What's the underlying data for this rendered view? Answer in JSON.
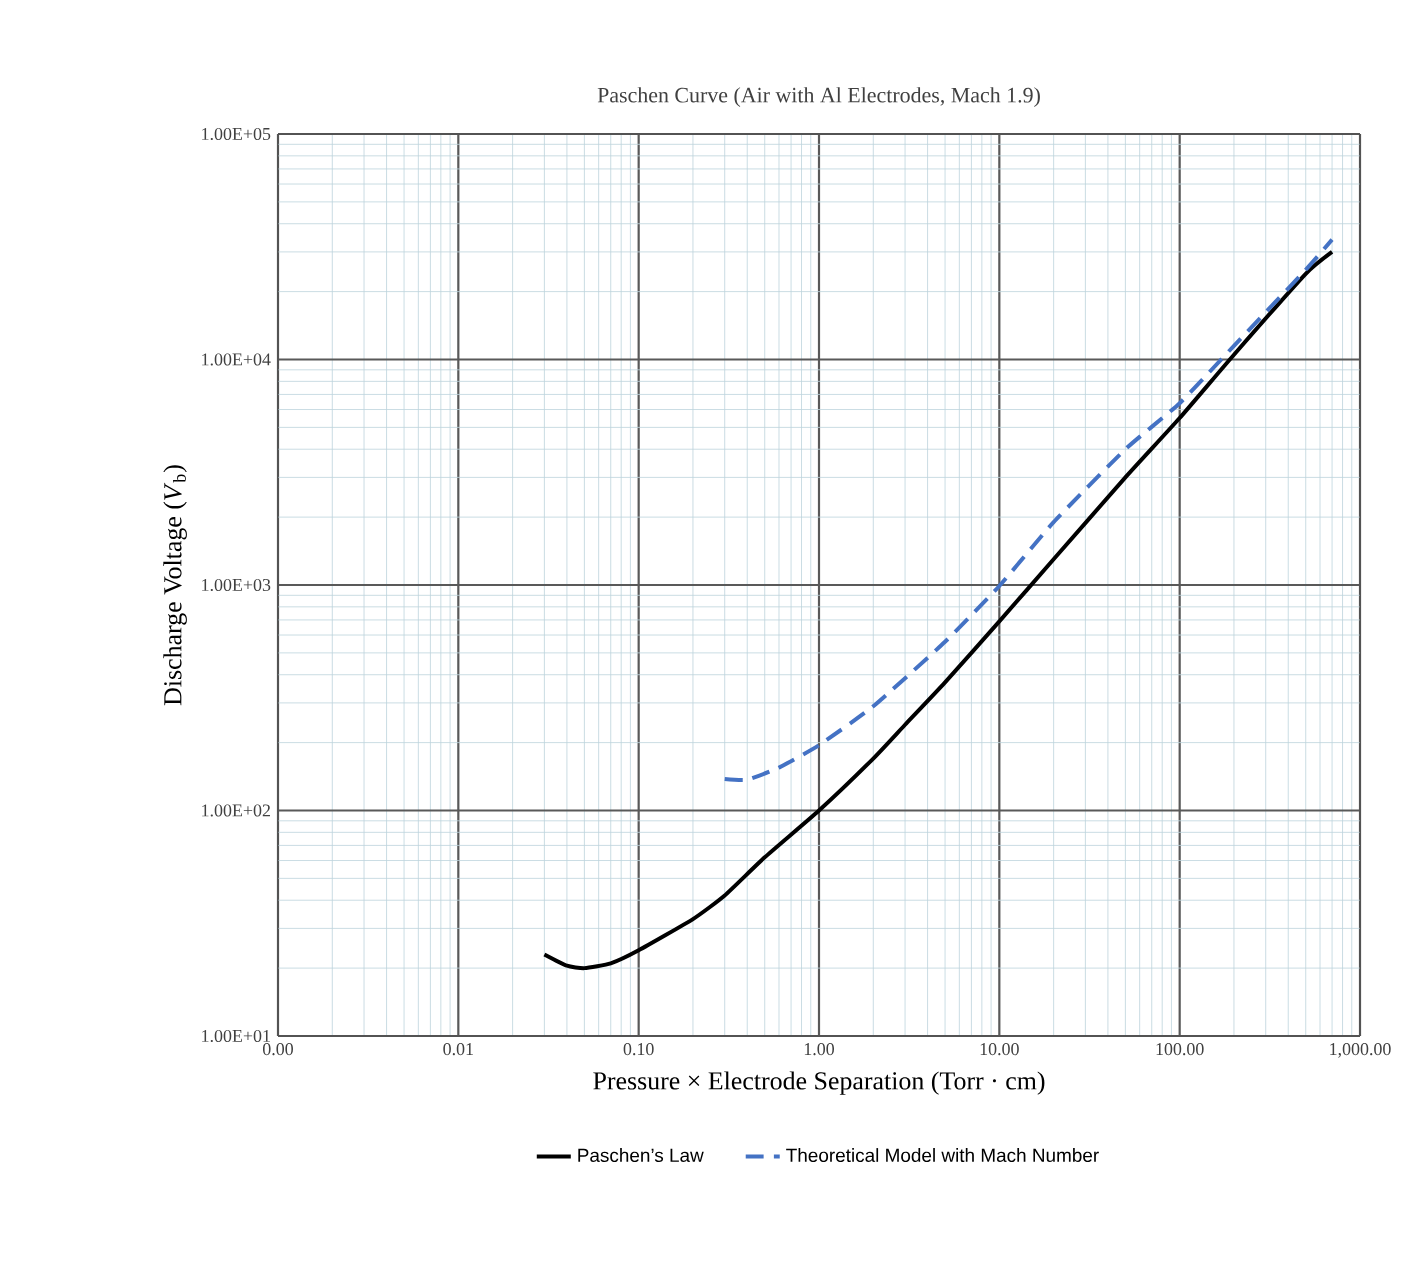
{
  "chart_data": {
    "type": "line",
    "title": "Paschen Curve (Air with Al Electrodes, Mach 1.9)",
    "xlabel": "Pressure × Electrode Separation (Torr · cm)",
    "ylabel": "Discharge Voltage (*V*$_{b}$)",
    "log": "xy",
    "grid": true,
    "legend": "bottom",
    "xlim": [
      0.001,
      1000
    ],
    "ylim": [
      10,
      100000
    ],
    "xticks": [
      {
        "value": 0.001,
        "label": "0.00"
      },
      {
        "value": 0.01,
        "label": "0.01"
      },
      {
        "value": 0.1,
        "label": "0.10"
      },
      {
        "value": 1,
        "label": "1.00"
      },
      {
        "value": 10,
        "label": "10.00"
      },
      {
        "value": 100,
        "label": "100.00"
      },
      {
        "value": 1000,
        "label": "1,000.00"
      }
    ],
    "yticks": [
      {
        "value": 10,
        "label": "1.00E+01"
      },
      {
        "value": 100,
        "label": "1.00E+02"
      },
      {
        "value": 1000,
        "label": "1.00E+03"
      },
      {
        "value": 10000,
        "label": "1.00E+04"
      },
      {
        "value": 100000,
        "label": "1.00E+05"
      }
    ],
    "series": [
      {
        "name": "Paschen’s Law",
        "color": "#000000",
        "line_style": "solid",
        "x": [
          0.03,
          0.04,
          0.05,
          0.07,
          0.1,
          0.2,
          0.3,
          0.5,
          1,
          2,
          3,
          5,
          10,
          20,
          50,
          100,
          200,
          500,
          700
        ],
        "values": [
          23,
          20.5,
          20,
          21,
          24,
          33,
          42,
          62,
          100,
          170,
          240,
          370,
          690,
          1300,
          3000,
          5500,
          10500,
          24000,
          30000
        ]
      },
      {
        "name": "Theoretical Model with Mach Number",
        "color": "#4472c4",
        "line_style": "dashed",
        "x": [
          0.3,
          0.4,
          0.6,
          1,
          2,
          5,
          10,
          20,
          50,
          100,
          200,
          500,
          700
        ],
        "values": [
          138,
          137,
          155,
          195,
          290,
          560,
          990,
          1900,
          4000,
          6400,
          11500,
          25000,
          34000
        ]
      }
    ]
  }
}
